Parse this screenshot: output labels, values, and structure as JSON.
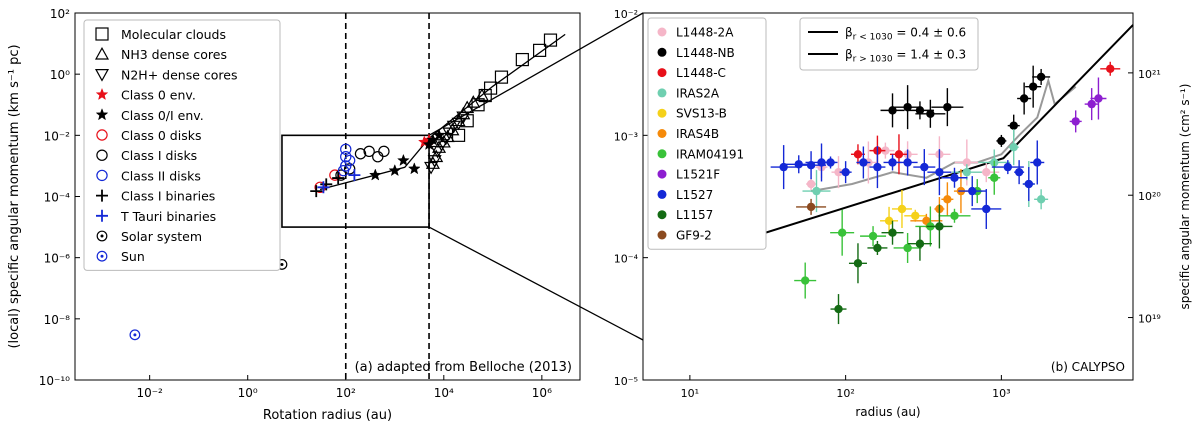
{
  "chart_data": [
    {
      "type": "scatter",
      "panel_label": "(a) adapted from Belloche (2013)",
      "xlabel": "Rotation radius (au)",
      "ylabel": "(local) specific angular momentum (km s⁻¹ pc)",
      "xscale": "log",
      "yscale": "log",
      "xlim": [
        0.0003,
        6000000
      ],
      "ylim": [
        1e-10,
        100
      ],
      "x_ticks": [
        {
          "value": 0.01,
          "label": "10⁻²"
        },
        {
          "value": 1,
          "label": "10⁰"
        },
        {
          "value": 100,
          "label": "10²"
        },
        {
          "value": 10000,
          "label": "10⁴"
        },
        {
          "value": 1000000,
          "label": "10⁶"
        }
      ],
      "y_ticks": [
        {
          "value": 1e-10,
          "label": "10⁻¹⁰"
        },
        {
          "value": 1e-08,
          "label": "10⁻⁸"
        },
        {
          "value": 1e-06,
          "label": "10⁻⁶"
        },
        {
          "value": 0.0001,
          "label": "10⁻⁴"
        },
        {
          "value": 0.01,
          "label": "10⁻²"
        },
        {
          "value": 1,
          "label": "10⁰"
        },
        {
          "value": 100,
          "label": "10²"
        }
      ],
      "vertical_lines": [
        100,
        5000
      ],
      "zoom_box": {
        "x": [
          5,
          5000
        ],
        "y": [
          1e-05,
          0.01
        ]
      },
      "fit_line": [
        [
          30,
          0.00017
        ],
        [
          1600,
          0.0009
        ],
        [
          5000,
          0.008
        ],
        [
          100000,
          0.4
        ],
        [
          3000000,
          20
        ]
      ],
      "legend_position": "upper-left",
      "series": [
        {
          "name": "Molecular clouds",
          "marker": "square",
          "color": "#000000",
          "filled": false,
          "points": [
            [
              20000,
              0.01
            ],
            [
              30000,
              0.03
            ],
            [
              50000,
              0.1
            ],
            [
              70000,
              0.2
            ],
            [
              90000,
              0.35
            ],
            [
              150000,
              0.8
            ],
            [
              400000,
              3
            ],
            [
              900000,
              6
            ],
            [
              1500000,
              13
            ]
          ]
        },
        {
          "name": "NH3 dense cores",
          "marker": "triangle-up",
          "color": "#000000",
          "filled": false,
          "points": [
            [
              6000,
              0.0012
            ],
            [
              7000,
              0.002
            ],
            [
              8000,
              0.004
            ],
            [
              10000,
              0.006
            ],
            [
              12000,
              0.009
            ],
            [
              15000,
              0.015
            ],
            [
              20000,
              0.03
            ],
            [
              25000,
              0.05
            ],
            [
              30000,
              0.08
            ],
            [
              40000,
              0.12
            ],
            [
              60000,
              0.2
            ]
          ]
        },
        {
          "name": "N2H+ dense cores",
          "marker": "triangle-down",
          "color": "#000000",
          "filled": false,
          "points": [
            [
              5500,
              0.0009
            ],
            [
              6500,
              0.0015
            ],
            [
              7500,
              0.003
            ],
            [
              9000,
              0.005
            ],
            [
              11000,
              0.008
            ],
            [
              13000,
              0.012
            ],
            [
              16000,
              0.02
            ],
            [
              20000,
              0.025
            ],
            [
              25000,
              0.04
            ]
          ]
        },
        {
          "name": "Class 0 env.",
          "marker": "star",
          "color": "#e8101a",
          "filled": true,
          "points": [
            [
              4000,
              0.006
            ],
            [
              5000,
              0.007
            ]
          ]
        },
        {
          "name": "Class 0/I env.",
          "marker": "star",
          "color": "#000000",
          "filled": true,
          "points": [
            [
              2500,
              0.0008
            ],
            [
              1500,
              0.0015
            ],
            [
              1000,
              0.0007
            ],
            [
              5000,
              0.005
            ],
            [
              6000,
              0.007
            ],
            [
              8000,
              0.01
            ],
            [
              400,
              0.0005
            ]
          ]
        },
        {
          "name": "Class 0 disks",
          "marker": "circle",
          "color": "#e8101a",
          "filled": false,
          "points": [
            [
              30,
              0.0002
            ],
            [
              60,
              0.0005
            ]
          ]
        },
        {
          "name": "Class I disks",
          "marker": "circle",
          "color": "#000000",
          "filled": false,
          "points": [
            [
              80,
              0.0005
            ],
            [
              120,
              0.0008
            ],
            [
              200,
              0.0025
            ],
            [
              300,
              0.003
            ],
            [
              450,
              0.002
            ],
            [
              600,
              0.003
            ]
          ]
        },
        {
          "name": "Class II disks",
          "marker": "circle",
          "color": "#1428d6",
          "filled": false,
          "points": [
            [
              100,
              0.001
            ],
            [
              100,
              0.002
            ],
            [
              100,
              0.0035
            ],
            [
              120,
              0.0015
            ],
            [
              90,
              0.0007
            ]
          ]
        },
        {
          "name": "Class I binaries",
          "marker": "plus",
          "color": "#000000",
          "filled": true,
          "points": [
            [
              25,
              0.00015
            ],
            [
              40,
              0.00025
            ],
            [
              70,
              0.0004
            ]
          ]
        },
        {
          "name": "T Tauri binaries",
          "marker": "plus",
          "color": "#1428d6",
          "filled": true,
          "points": [
            [
              35,
              0.0002
            ],
            [
              150,
              0.0005
            ]
          ]
        },
        {
          "name": "Solar system",
          "marker": "circle-dot",
          "color": "#000000",
          "filled": false,
          "points": [
            [
              5,
              6e-07
            ]
          ]
        },
        {
          "name": "Sun",
          "marker": "circle-dot",
          "color": "#1428d6",
          "filled": false,
          "points": [
            [
              0.005,
              3e-09
            ]
          ]
        }
      ]
    },
    {
      "type": "scatter",
      "panel_label": "(b) CALYPSO",
      "xlabel": "radius (au)",
      "ylabel": "specific angular momentum (km s⁻¹ pc)",
      "ylabel_right": "specific angular momentum (cm² s⁻¹)",
      "xscale": "log",
      "yscale": "log",
      "xlim": [
        5,
        7000
      ],
      "ylim": [
        1e-05,
        0.01
      ],
      "x_ticks": [
        {
          "value": 10,
          "label": "10¹"
        },
        {
          "value": 100,
          "label": "10²"
        },
        {
          "value": 1000,
          "label": "10³"
        }
      ],
      "y_ticks": [
        {
          "value": 1e-05,
          "label": "10⁻⁵"
        },
        {
          "value": 0.0001,
          "label": "10⁻⁴"
        },
        {
          "value": 0.001,
          "label": "10⁻³"
        },
        {
          "value": 0.01,
          "label": "10⁻²"
        }
      ],
      "y_ticks_right": [
        {
          "value": 3.24e-05,
          "label": "10¹⁹"
        },
        {
          "value": 0.000324,
          "label": "10²⁰"
        },
        {
          "value": 0.00324,
          "label": "10²¹"
        }
      ],
      "fit_annotations": [
        {
          "label_html": "β",
          "sub": "r < 1030",
          "text": " = 0.4 ± 0.6"
        },
        {
          "label_html": "β",
          "sub": "r > 1030",
          "text": " = 1.4 ± 0.3"
        }
      ],
      "fit_line": [
        [
          20,
          0.000135
        ],
        [
          1030,
          0.00065
        ],
        [
          7000,
          0.008
        ]
      ],
      "model_line": [
        [
          60,
          0.00035
        ],
        [
          110,
          0.0004
        ],
        [
          200,
          0.0005
        ],
        [
          330,
          0.00045
        ],
        [
          500,
          0.0006
        ],
        [
          700,
          0.0006
        ],
        [
          1000,
          0.0007
        ],
        [
          1300,
          0.001
        ],
        [
          1700,
          0.0014
        ],
        [
          2000,
          0.0028
        ],
        [
          2200,
          0.0018
        ],
        [
          3000,
          0.0025
        ]
      ],
      "legend_position": "upper-left",
      "series": [
        {
          "name": "L1448-2A",
          "color": "#f5b6c8",
          "points": [
            [
              60,
              0.0004
            ],
            [
              70,
              0.00055
            ],
            [
              90,
              0.0005
            ],
            [
              140,
              0.0006
            ],
            [
              180,
              0.00075
            ],
            [
              250,
              0.0007
            ],
            [
              400,
              0.0007
            ],
            [
              600,
              0.0006
            ],
            [
              800,
              0.0005
            ]
          ]
        },
        {
          "name": "L1448-NB",
          "color": "#000000",
          "points": [
            [
              200,
              0.0016
            ],
            [
              250,
              0.0017
            ],
            [
              300,
              0.0016
            ],
            [
              350,
              0.0015
            ],
            [
              450,
              0.0017
            ],
            [
              1000,
              0.0009
            ],
            [
              1200,
              0.0012
            ],
            [
              1400,
              0.002
            ],
            [
              1600,
              0.0025
            ],
            [
              1800,
              0.003
            ]
          ]
        },
        {
          "name": "L1448-C",
          "color": "#e8101a",
          "points": [
            [
              120,
              0.0007
            ],
            [
              160,
              0.00075
            ],
            [
              220,
              0.0007
            ],
            [
              5000,
              0.0035
            ]
          ]
        },
        {
          "name": "IRAS2A",
          "color": "#6fcfb0",
          "points": [
            [
              65,
              0.00035
            ],
            [
              600,
              0.0005
            ],
            [
              900,
              0.0006
            ],
            [
              1200,
              0.0008
            ],
            [
              1500,
              0.0004
            ],
            [
              1800,
              0.0003
            ]
          ]
        },
        {
          "name": "SVS13-B",
          "color": "#f5d11a",
          "points": [
            [
              190,
              0.0002
            ],
            [
              230,
              0.00025
            ],
            [
              280,
              0.00022
            ]
          ]
        },
        {
          "name": "IRAS4B",
          "color": "#f58a0a",
          "points": [
            [
              330,
              0.0002
            ],
            [
              400,
              0.00025
            ],
            [
              450,
              0.0003
            ],
            [
              550,
              0.00035
            ]
          ]
        },
        {
          "name": "IRAM04191",
          "color": "#39c239",
          "points": [
            [
              55,
              6.5e-05
            ],
            [
              95,
              0.00016
            ],
            [
              150,
              0.00015
            ],
            [
              250,
              0.00012
            ],
            [
              350,
              0.00018
            ],
            [
              500,
              0.00022
            ],
            [
              700,
              0.00035
            ],
            [
              900,
              0.00045
            ]
          ]
        },
        {
          "name": "L1521F",
          "color": "#8d1ed0",
          "points": [
            [
              3000,
              0.0013
            ],
            [
              3800,
              0.0018
            ],
            [
              4200,
              0.002
            ]
          ]
        },
        {
          "name": "L1527",
          "color": "#1428d6",
          "points": [
            [
              40,
              0.00055
            ],
            [
              50,
              0.00058
            ],
            [
              60,
              0.00057
            ],
            [
              70,
              0.0006
            ],
            [
              80,
              0.0006
            ],
            [
              100,
              0.0005
            ],
            [
              130,
              0.0006
            ],
            [
              160,
              0.00055
            ],
            [
              200,
              0.0006
            ],
            [
              250,
              0.0006
            ],
            [
              320,
              0.00055
            ],
            [
              400,
              0.0005
            ],
            [
              500,
              0.00045
            ],
            [
              650,
              0.00035
            ],
            [
              800,
              0.00025
            ],
            [
              1100,
              0.00055
            ],
            [
              1300,
              0.0005
            ],
            [
              1500,
              0.0004
            ],
            [
              1700,
              0.0006
            ]
          ]
        },
        {
          "name": "L1157",
          "color": "#146b14",
          "points": [
            [
              90,
              3.8e-05
            ],
            [
              120,
              9e-05
            ],
            [
              160,
              0.00012
            ],
            [
              200,
              0.00016
            ],
            [
              300,
              0.00013
            ],
            [
              400,
              0.00018
            ]
          ]
        },
        {
          "name": "GF9-2",
          "color": "#8b4a1f",
          "points": [
            [
              60,
              0.00026
            ]
          ]
        }
      ]
    }
  ]
}
